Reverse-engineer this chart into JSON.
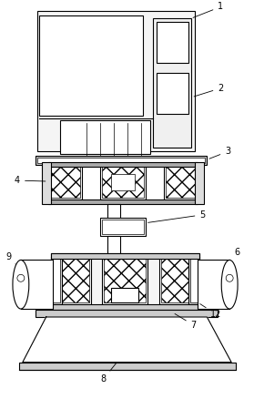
{
  "fig_width": 2.79,
  "fig_height": 4.38,
  "dpi": 100,
  "bg_color": "#ffffff",
  "line_color": "#000000",
  "lw": 0.8,
  "tlw": 0.5
}
